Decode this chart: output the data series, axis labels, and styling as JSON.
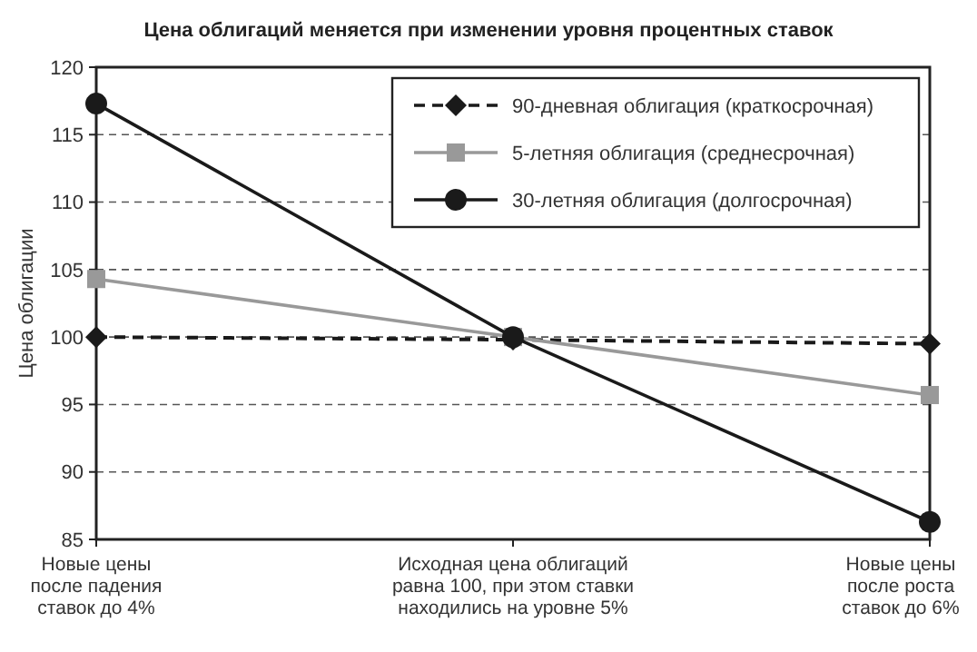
{
  "chart_data": {
    "type": "line",
    "title": "Цена облигаций меняется при изменении уровня процентных ставок",
    "ylabel": "Цена облигации",
    "categories": [
      "Новые цены после падения ставок до 4%",
      "Исходная цена облигаций равна 100, при этом ставки находились на уровне 5%",
      "Новые цены после роста ставок до 6%"
    ],
    "series": [
      {
        "name": "90-дневная облигация (краткосрочная)",
        "color": "#1a1a1a",
        "values": [
          100,
          99.8,
          99.5
        ],
        "marker": "diamond",
        "line_style": "dashed"
      },
      {
        "name": "5-летняя облигация (среднесрочная)",
        "color": "#999999",
        "values": [
          104.3,
          100,
          95.7
        ],
        "marker": "square",
        "line_style": "solid"
      },
      {
        "name": "30-летняя облигация (долгосрочная)",
        "color": "#1a1a1a",
        "values": [
          117.3,
          100,
          86.3
        ],
        "marker": "circle",
        "line_style": "solid"
      }
    ],
    "ylim": [
      85,
      120
    ],
    "yticks": [
      85,
      90,
      95,
      100,
      105,
      110,
      115,
      120
    ],
    "grid": "y",
    "legend": "top right"
  }
}
